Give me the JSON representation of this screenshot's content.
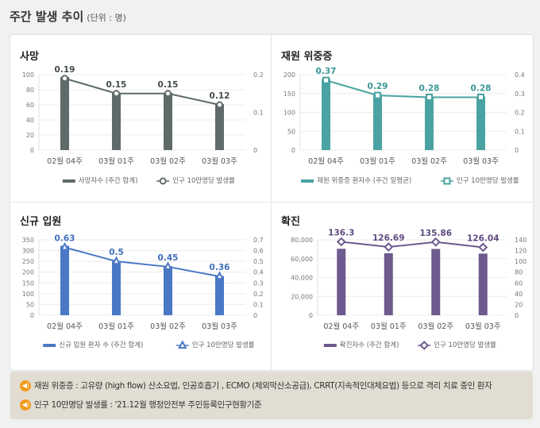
{
  "header": {
    "title": "주간 발생 추이",
    "unit": "(단위 : 명)"
  },
  "footer": {
    "notes": [
      "재원 위중증 : 고유량 (high flow) 산소요법, 인공호흡기 , ECMO (체외막산소공급), CRRT(지속적인대체요법) 등으로 격리 치료 중인 환자",
      "인구 10만명당 발생률 : '21.12월 행정안전부 주민등록인구현황기준"
    ]
  },
  "chart_data": [
    {
      "type": "bar+line",
      "title": "사망",
      "categories": [
        "02월 04주",
        "03월 01주",
        "03월 02주",
        "03월 03주"
      ],
      "bar_series": {
        "name": "사망자수 (주간 합계)",
        "values": [
          97,
          76,
          76,
          61
        ]
      },
      "line_series": {
        "name": "인구 10만명당 발생률",
        "values": [
          0.19,
          0.15,
          0.15,
          0.12
        ],
        "labels": [
          "0.19",
          "0.15",
          "0.15",
          "0.12"
        ],
        "marker": "circle"
      },
      "ylim": [
        0,
        100
      ],
      "yticks": [
        "0",
        "20",
        "40",
        "60",
        "80",
        "100"
      ],
      "y2lim": [
        0,
        0.2
      ],
      "y2ticks": [
        "0",
        "0.1",
        "0.2"
      ],
      "color": "#5f6b6a",
      "label_color": "#444b4b",
      "legend": "bottom"
    },
    {
      "type": "bar+line",
      "title": "재원 위중증",
      "categories": [
        "02월 04주",
        "03월 01주",
        "03월 02주",
        "03월 03주"
      ],
      "bar_series": {
        "name": "재원 위중증 환자수 (주간 일평균)",
        "values": [
          188,
          147,
          142,
          142
        ]
      },
      "line_series": {
        "name": "인구 10만명당 발생률",
        "values": [
          0.37,
          0.29,
          0.28,
          0.28
        ],
        "labels": [
          "0.37",
          "0.29",
          "0.28",
          "0.28"
        ],
        "marker": "square"
      },
      "ylim": [
        0,
        200
      ],
      "yticks": [
        "0",
        "50",
        "100",
        "150",
        "200"
      ],
      "y2lim": [
        0,
        0.4
      ],
      "y2ticks": [
        "0",
        "0.1",
        "0.2",
        "0.3",
        "0.4"
      ],
      "color": "#4aa3a2",
      "label_color": "#3a9796",
      "legend": "bottom"
    },
    {
      "type": "bar+line",
      "title": "신규 입원",
      "categories": [
        "02월 04주",
        "03월 01주",
        "03월 02주",
        "03월 03주"
      ],
      "bar_series": {
        "name": "신규 입원 환자 수 (주간 합계)",
        "values": [
          322,
          250,
          228,
          182
        ]
      },
      "line_series": {
        "name": "인구 10만명당 발생률",
        "values": [
          0.63,
          0.5,
          0.45,
          0.36
        ],
        "labels": [
          "0.63",
          "0.5",
          "0.45",
          "0.36"
        ],
        "marker": "triangle"
      },
      "ylim": [
        0,
        350
      ],
      "yticks": [
        "0",
        "50",
        "100",
        "150",
        "200",
        "250",
        "300",
        "350"
      ],
      "y2lim": [
        0,
        0.7
      ],
      "y2ticks": [
        "0",
        "0.1",
        "0.2",
        "0.3",
        "0.4",
        "0.5",
        "0.6",
        "0.7"
      ],
      "color": "#4a78c4",
      "label_color": "#3f6fbf",
      "legend": "bottom"
    },
    {
      "type": "bar+line",
      "title": "확진",
      "categories": [
        "02월 04주",
        "03월 01주",
        "03월 02주",
        "03월 03주"
      ],
      "bar_series": {
        "name": "확진자수 (주간 합계)",
        "values": [
          70500,
          65800,
          70300,
          65400
        ]
      },
      "line_series": {
        "name": "인구 10만명당 발생률",
        "values": [
          136.3,
          126.69,
          135.86,
          126.04
        ],
        "labels": [
          "136.3",
          "126.69",
          "135.86",
          "126.04"
        ],
        "marker": "diamond"
      },
      "ylim": [
        0,
        80000
      ],
      "yticks": [
        "0",
        "20,000",
        "40,000",
        "60,000",
        "80,000"
      ],
      "y2lim": [
        0,
        140
      ],
      "y2ticks": [
        "0",
        "20",
        "40",
        "60",
        "80",
        "100",
        "120",
        "140"
      ],
      "color": "#6e5a8e",
      "label_color": "#5e4a80",
      "legend": "bottom"
    }
  ]
}
